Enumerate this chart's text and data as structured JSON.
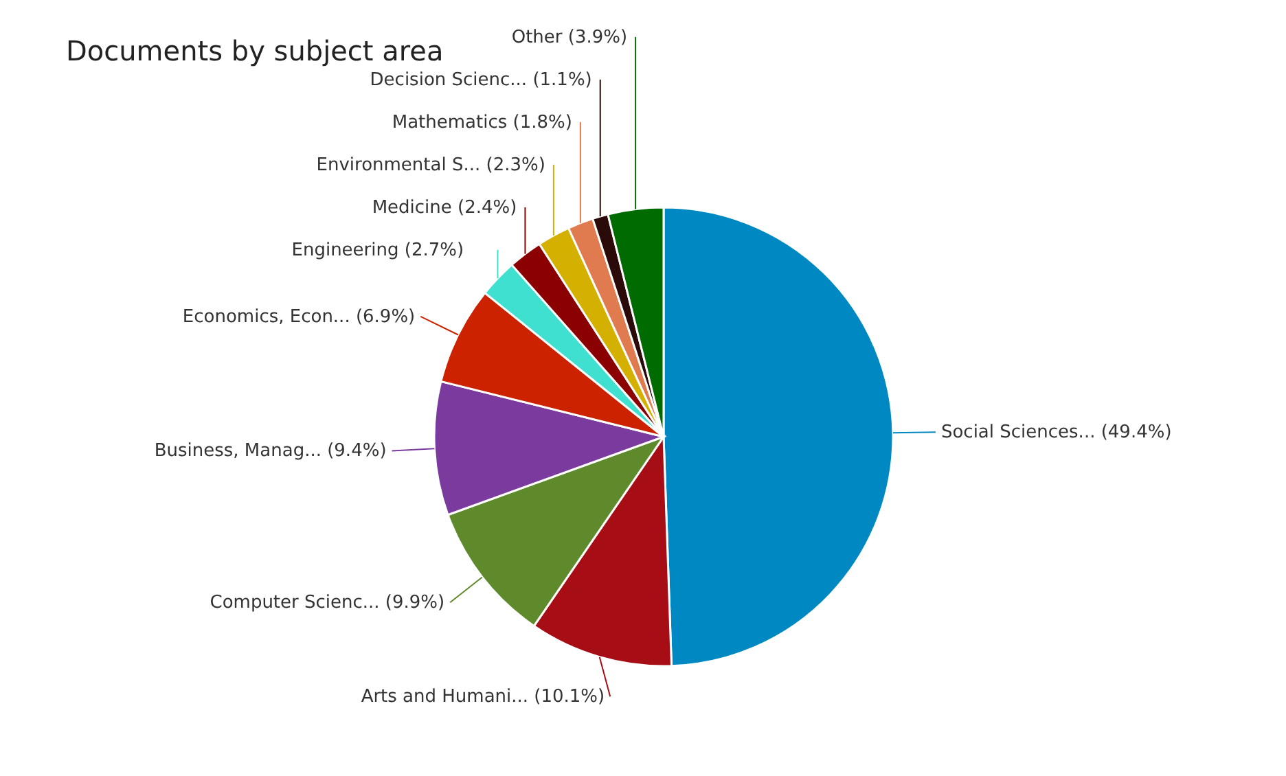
{
  "chart_data": {
    "type": "pie",
    "title": "Documents by subject area",
    "categories": [
      "Social Sciences...",
      "Arts and Humani...",
      "Computer Scienc...",
      "Business, Manag...",
      "Economics, Econ...",
      "Engineering",
      "Medicine",
      "Environmental S...",
      "Mathematics",
      "Decision Scienc...",
      "Other"
    ],
    "values": [
      49.4,
      10.1,
      9.9,
      9.4,
      6.9,
      2.7,
      2.4,
      2.3,
      1.8,
      1.1,
      3.9
    ],
    "value_labels": [
      "(49.4%)",
      "(10.1%)",
      "(9.9%)",
      "(9.4%)",
      "(6.9%)",
      "(2.7%)",
      "(2.4%)",
      "(2.3%)",
      "(1.8%)",
      "(1.1%)",
      "(3.9%)"
    ],
    "colors": [
      "#0088c3",
      "#a70d15",
      "#5f8a2b",
      "#7b3b9e",
      "#cc2200",
      "#40e0d0",
      "#8b0000",
      "#d4b000",
      "#e07b50",
      "#2b0a0a",
      "#006b00"
    ]
  }
}
